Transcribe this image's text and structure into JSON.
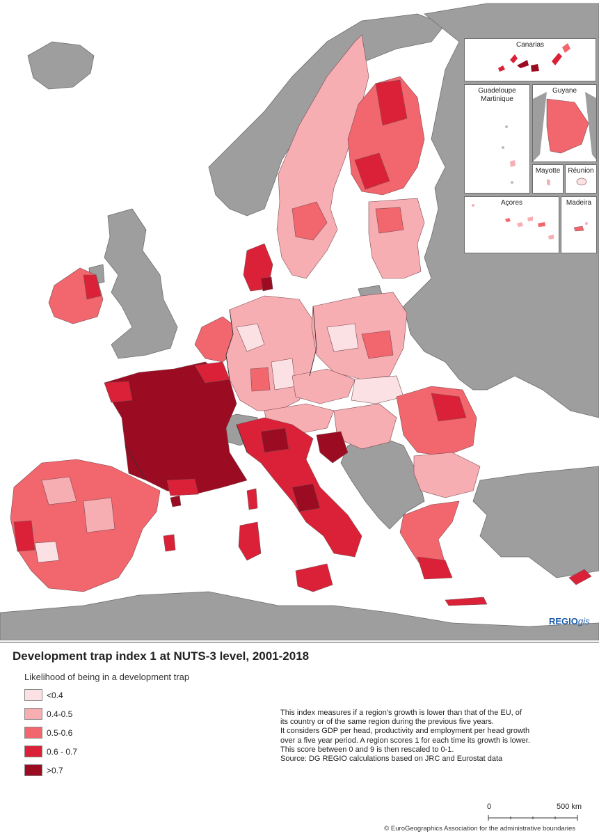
{
  "map": {
    "logo_main": "REGIO",
    "logo_sub": "gis",
    "insets": {
      "canarias": "Canarias",
      "guadeloupe": "Guadeloupe",
      "martinique": "Martinique",
      "guyane": "Guyane",
      "mayotte": "Mayotte",
      "reunion": "Réunion",
      "acores": "Açores",
      "madeira": "Madeira"
    },
    "colors": {
      "sea": "#ffffff",
      "non_eu_land": "#9e9e9e",
      "border": "#555555"
    }
  },
  "title": "Development trap index 1 at NUTS-3 level, 2001-2018",
  "legend": {
    "title": "Likelihood of being in a development trap",
    "items": [
      {
        "label": "<0.4",
        "color": "#fbe1e3"
      },
      {
        "label": "0.4-0.5",
        "color": "#f7aeb3"
      },
      {
        "label": "0.5-0.6",
        "color": "#f2666d"
      },
      {
        "label": "0.6 - 0.7",
        "color": "#db2137"
      },
      {
        "label": ">0.7",
        "color": "#9b0b22"
      }
    ]
  },
  "note": {
    "line1": "This index measures if a region's growth is lower than that of the EU, of its country or of the same region during the previous five years.",
    "line2": "It considers GDP per head, productivity and employment per head growth over a five year period. A region scores 1 for each time its growth is lower. This score between 0 and 9 is then rescaled to 0-1.",
    "line3": "Source: DG REGIO calculations based on JRC and Eurostat data"
  },
  "scale": {
    "zero": "0",
    "distance": "500 km"
  },
  "copyright": "© EuroGeographics Association for the administrative boundaries"
}
